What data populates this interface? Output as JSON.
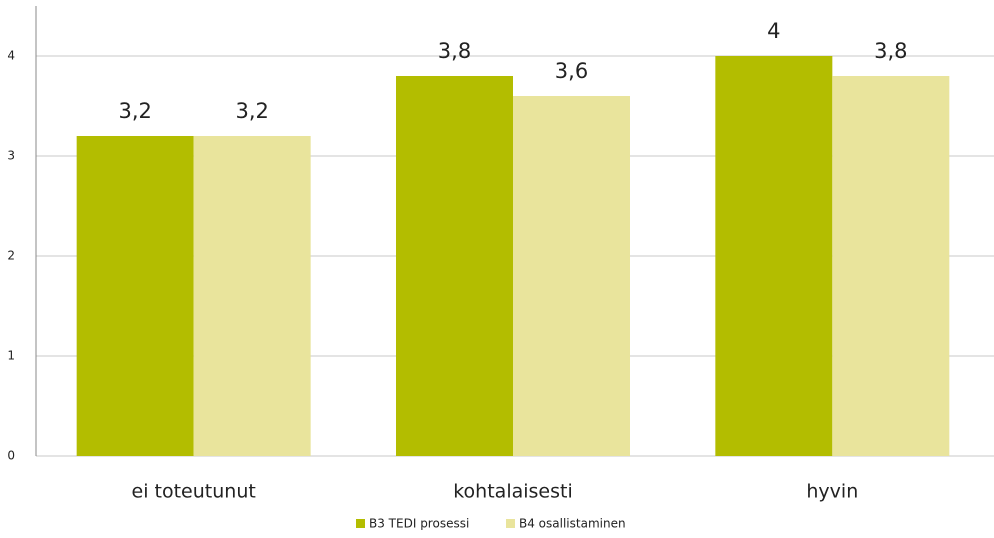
{
  "chart_data": {
    "type": "bar",
    "categories": [
      "ei toteutunut",
      "kohtalaisesti",
      "hyvin"
    ],
    "series": [
      {
        "name": "B3 TEDI prosessi",
        "color": "#b3bd00",
        "values": [
          3.2,
          3.8,
          4
        ],
        "value_labels": [
          "3,2",
          "3,8",
          "4"
        ]
      },
      {
        "name": "B4 osallistaminen",
        "color": "#e9e49c",
        "values": [
          3.2,
          3.6,
          3.8
        ],
        "value_labels": [
          "3,2",
          "3,6",
          "3,8"
        ]
      }
    ],
    "ylim": [
      0,
      4.5
    ],
    "yticks": [
      0,
      1,
      2,
      3,
      4
    ],
    "grid": true,
    "legend": "bottom"
  }
}
